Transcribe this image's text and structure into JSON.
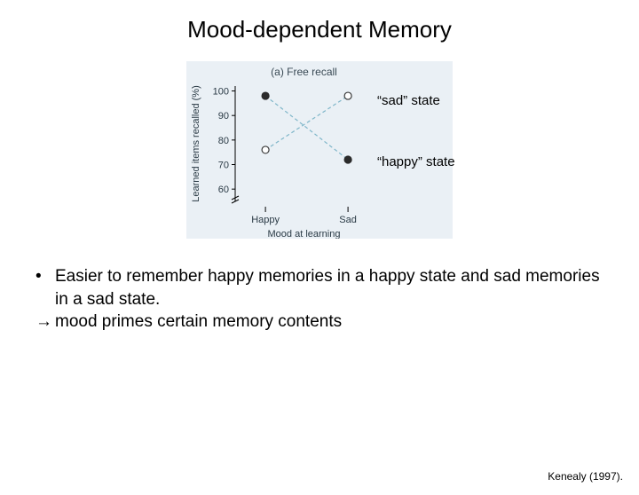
{
  "title": "Mood-dependent Memory",
  "chart": {
    "type": "line-scatter",
    "subplot_label": "(a) Free recall",
    "subplot_label_fontsize": 12,
    "background_color": "#eaf0f5",
    "ylabel": "Learned items recalled (%)",
    "xlabel": "Mood at learning",
    "label_fontsize": 11,
    "y_ticks": [
      60,
      70,
      80,
      90,
      100
    ],
    "x_categories": [
      "Happy",
      "Sad"
    ],
    "ylim": [
      55,
      102
    ],
    "series": [
      {
        "name": "sad_state",
        "marker": "open-circle",
        "marker_fill": "#ffffff",
        "marker_stroke": "#3a3a3a",
        "marker_size": 4,
        "line_color": "#7fb6c9",
        "line_dash": "4 3",
        "line_width": 1.2,
        "points": [
          {
            "x": "Happy",
            "y": 76
          },
          {
            "x": "Sad",
            "y": 98
          }
        ]
      },
      {
        "name": "happy_state",
        "marker": "filled-circle",
        "marker_fill": "#2b2b2b",
        "marker_stroke": "#2b2b2b",
        "marker_size": 4,
        "line_color": "#7fb6c9",
        "line_dash": "4 3",
        "line_width": 1.2,
        "points": [
          {
            "x": "Happy",
            "y": 98
          },
          {
            "x": "Sad",
            "y": 72
          }
        ]
      }
    ],
    "axis_color": "#000000",
    "tick_fontsize": 11,
    "annotations": {
      "sad_label": "“sad” state",
      "happy_label": "“happy” state"
    }
  },
  "bullets": {
    "marker": "•",
    "arrow": "→",
    "line1": "Easier to remember happy memories in a happy state and sad memories in a sad state.",
    "line2": "mood primes certain memory contents"
  },
  "citation": "Kenealy (1997)."
}
